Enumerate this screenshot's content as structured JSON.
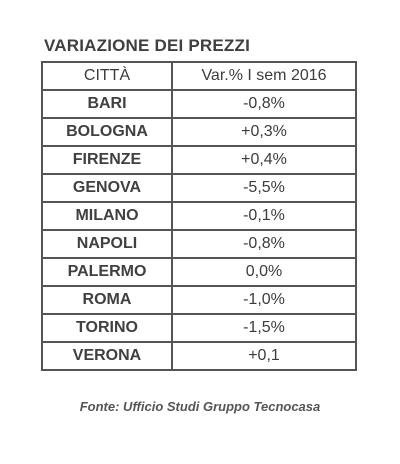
{
  "title": "VARIAZIONE DEI PREZZI",
  "table": {
    "headers": {
      "city": "CITTÀ",
      "variation": "Var.% I sem 2016"
    },
    "rows": [
      {
        "city": "BARI",
        "value": "-0,8%"
      },
      {
        "city": "BOLOGNA",
        "value": "+0,3%"
      },
      {
        "city": "FIRENZE",
        "value": "+0,4%"
      },
      {
        "city": "GENOVA",
        "value": "-5,5%"
      },
      {
        "city": "MILANO",
        "value": "-0,1%"
      },
      {
        "city": "NAPOLI",
        "value": "-0,8%"
      },
      {
        "city": "PALERMO",
        "value": "0,0%"
      },
      {
        "city": "ROMA",
        "value": "-1,0%"
      },
      {
        "city": "TORINO",
        "value": "-1,5%"
      },
      {
        "city": "VERONA",
        "value": "+0,1"
      }
    ]
  },
  "source": "Fonte: Ufficio Studi Gruppo Tecnocasa"
}
